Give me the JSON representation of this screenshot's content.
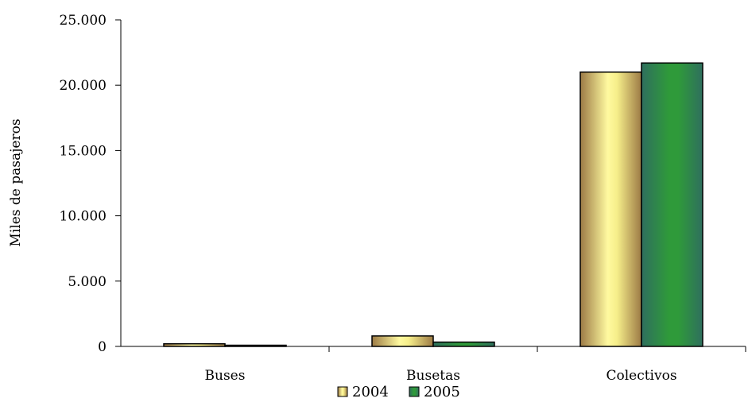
{
  "chart_data": {
    "type": "bar",
    "categories": [
      "Buses",
      "Busetas",
      "Colectivos"
    ],
    "series": [
      {
        "name": "2004",
        "values": [
          200,
          800,
          21000
        ],
        "color": "#f2e97a"
      },
      {
        "name": "2005",
        "values": [
          90,
          330,
          21700
        ],
        "color": "#2e8b3e"
      }
    ],
    "ylabel": "Miles de pasajeros",
    "ylim": [
      0,
      25000
    ],
    "yticks": [
      0,
      5000,
      10000,
      15000,
      20000,
      25000
    ],
    "ytick_labels": [
      "0",
      "5.000",
      "10.000",
      "15.000",
      "20.000",
      "25.000"
    ],
    "legend_position": "bottom",
    "grid": false
  }
}
